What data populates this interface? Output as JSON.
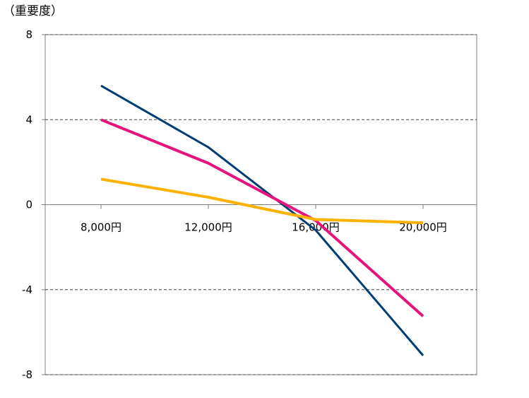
{
  "chart_data": {
    "type": "line",
    "title": "",
    "xlabel": "",
    "ylabel": "（重要度）",
    "categories": [
      "8,000円",
      "12,000円",
      "16,000円",
      "20,000円"
    ],
    "series": [
      {
        "color": "#003D73",
        "values": [
          5.6,
          2.7,
          -1.2,
          -7.1
        ]
      },
      {
        "color": "#E4147C",
        "values": [
          4.0,
          1.95,
          -0.75,
          -5.25
        ]
      },
      {
        "color": "#FDB100",
        "values": [
          1.2,
          0.35,
          -0.7,
          -0.85
        ]
      }
    ],
    "ylim": [
      -8,
      8
    ],
    "yticks": [
      8,
      4,
      0,
      -4,
      -8
    ],
    "grid": "horizontal dashed at major ticks",
    "legend": "none"
  }
}
